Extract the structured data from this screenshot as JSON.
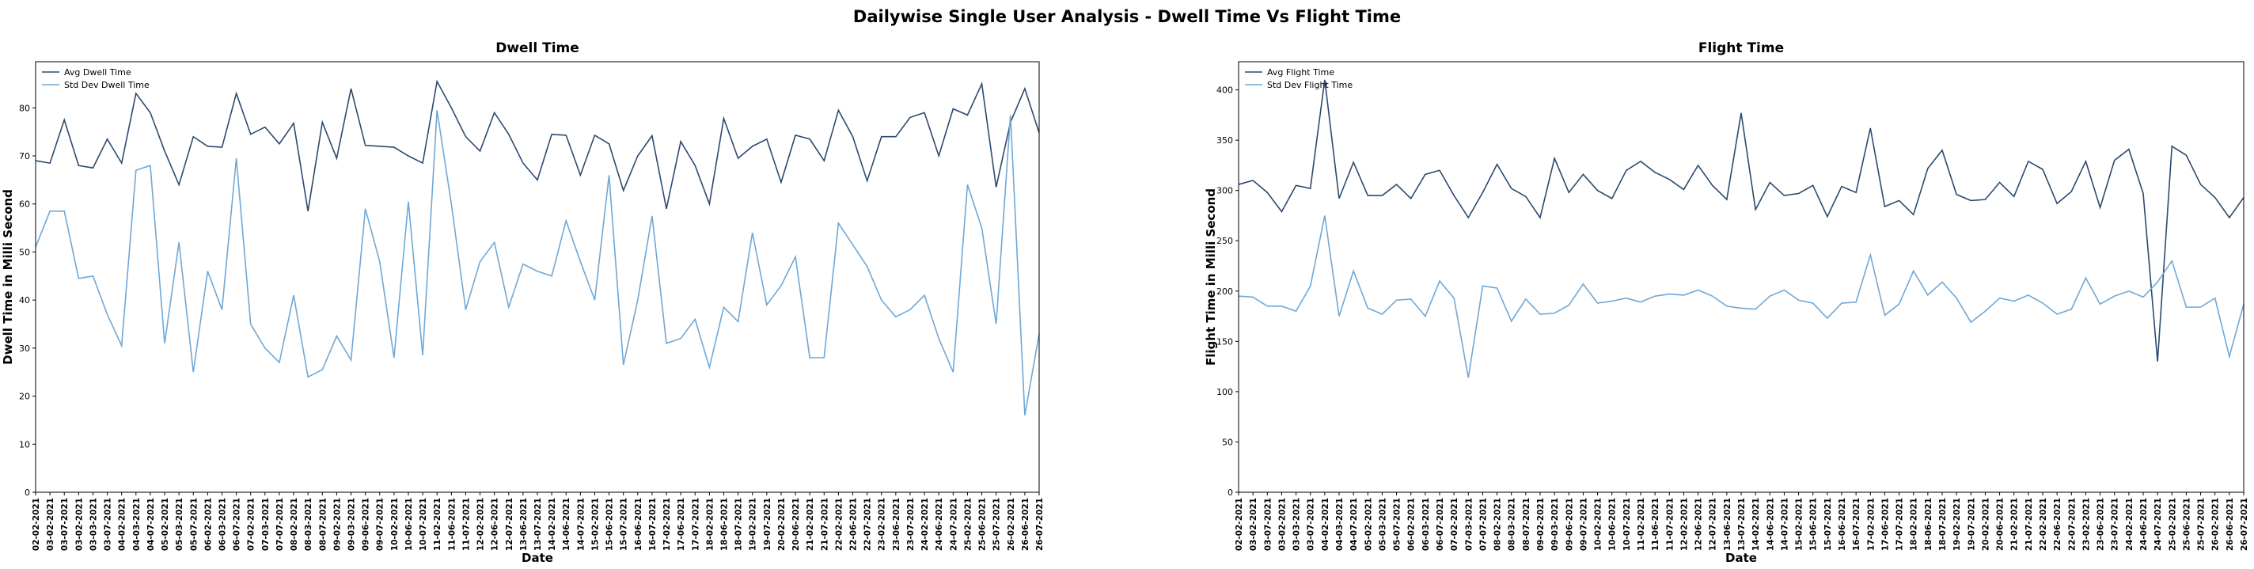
{
  "title": "Dailywise Single User Analysis - Dwell Time Vs Flight Time",
  "chart_data": [
    {
      "type": "line",
      "title": "Dwell Time",
      "xlabel": "Date",
      "ylabel": "Dwell Time in Milli Second",
      "categories": [
        "02-02-2021",
        "03-02-2021",
        "03-07-2021",
        "03-02-2021",
        "03-03-2021",
        "03-07-2021",
        "04-02-2021",
        "04-03-2021",
        "04-07-2021",
        "05-02-2021",
        "05-03-2021",
        "05-07-2021",
        "06-02-2021",
        "06-03-2021",
        "06-07-2021",
        "07-02-2021",
        "07-03-2021",
        "07-07-2021",
        "08-02-2021",
        "08-03-2021",
        "08-07-2021",
        "09-02-2021",
        "09-03-2021",
        "09-06-2021",
        "09-07-2021",
        "10-02-2021",
        "10-06-2021",
        "10-07-2021",
        "11-02-2021",
        "11-06-2021",
        "11-07-2021",
        "12-02-2021",
        "12-06-2021",
        "12-07-2021",
        "13-06-2021",
        "13-07-2021",
        "14-02-2021",
        "14-06-2021",
        "14-07-2021",
        "15-02-2021",
        "15-06-2021",
        "15-07-2021",
        "16-06-2021",
        "16-07-2021",
        "17-02-2021",
        "17-06-2021",
        "17-07-2021",
        "18-02-2021",
        "18-06-2021",
        "18-07-2021",
        "19-02-2021",
        "19-07-2021",
        "20-02-2021",
        "20-06-2021",
        "21-02-2021",
        "21-07-2021",
        "22-02-2021",
        "22-06-2021",
        "22-07-2021",
        "23-02-2021",
        "23-06-2021",
        "23-07-2021",
        "24-02-2021",
        "24-06-2021",
        "24-07-2021",
        "25-02-2021",
        "25-06-2021",
        "25-07-2021",
        "26-02-2021",
        "26-06-2021",
        "26-07-2021"
      ],
      "series": [
        {
          "name": "Avg Dwell Time",
          "color": "#2b4a6f",
          "values": [
            69,
            68.5,
            77.5,
            68,
            67.5,
            73.5,
            68.5,
            83,
            79,
            71,
            64,
            74,
            72,
            71.8,
            83,
            74.5,
            76,
            72.5,
            76.8,
            58.5,
            77,
            69.5,
            84,
            72.2,
            72,
            71.8,
            70,
            68.5,
            85.5,
            80,
            74,
            71,
            79,
            74.5,
            68.5,
            65,
            74.5,
            74.3,
            66,
            74.3,
            72.5,
            62.8,
            70,
            74.2,
            59,
            73,
            68,
            60,
            77.8,
            69.5,
            72,
            73.5,
            64.5,
            74.3,
            73.5,
            69,
            79.5,
            74,
            64.8,
            74,
            74,
            78,
            79,
            70,
            79.8,
            78.5,
            85,
            63.5,
            77,
            84,
            74.8
          ]
        },
        {
          "name": "Std Dev Dwell Time",
          "color": "#6fa8d6",
          "values": [
            51,
            58.5,
            58.5,
            44.5,
            45,
            37,
            30.5,
            67,
            68,
            31,
            52,
            25,
            46,
            38,
            69.5,
            35,
            30,
            27,
            41,
            24,
            25.5,
            32.5,
            27.5,
            59,
            48,
            28,
            60.5,
            28.5,
            79.5,
            60,
            38,
            48,
            52,
            38.5,
            47.5,
            46,
            45,
            56.5,
            48,
            40,
            66,
            26.5,
            40,
            57.5,
            31,
            32,
            36,
            26,
            38.5,
            35.5,
            54,
            39,
            43,
            49,
            28,
            28,
            56,
            51.5,
            47,
            40,
            36.5,
            38,
            41,
            32,
            25,
            64,
            55,
            35,
            78.5,
            16,
            33
          ]
        }
      ],
      "ylim": [
        0,
        89.6
      ],
      "yticks": [
        0,
        10,
        20,
        30,
        40,
        50,
        60,
        70,
        80
      ],
      "legend": "upper left"
    },
    {
      "type": "line",
      "title": "Flight Time",
      "xlabel": "Date",
      "ylabel": "Flight Time in Milli Second",
      "categories": [
        "02-02-2021",
        "03-02-2021",
        "03-07-2021",
        "03-02-2021",
        "03-03-2021",
        "03-07-2021",
        "04-02-2021",
        "04-03-2021",
        "04-07-2021",
        "05-02-2021",
        "05-03-2021",
        "05-07-2021",
        "06-02-2021",
        "06-03-2021",
        "06-07-2021",
        "07-02-2021",
        "07-03-2021",
        "07-07-2021",
        "08-02-2021",
        "08-03-2021",
        "08-07-2021",
        "09-02-2021",
        "09-03-2021",
        "09-06-2021",
        "09-07-2021",
        "10-02-2021",
        "10-06-2021",
        "10-07-2021",
        "11-02-2021",
        "11-06-2021",
        "11-07-2021",
        "12-02-2021",
        "12-06-2021",
        "12-07-2021",
        "13-06-2021",
        "13-07-2021",
        "14-02-2021",
        "14-06-2021",
        "14-07-2021",
        "15-02-2021",
        "15-06-2021",
        "15-07-2021",
        "16-06-2021",
        "16-07-2021",
        "17-02-2021",
        "17-06-2021",
        "17-07-2021",
        "18-02-2021",
        "18-06-2021",
        "18-07-2021",
        "19-02-2021",
        "19-07-2021",
        "20-02-2021",
        "20-06-2021",
        "21-02-2021",
        "21-07-2021",
        "22-02-2021",
        "22-06-2021",
        "22-07-2021",
        "23-02-2021",
        "23-06-2021",
        "23-07-2021",
        "24-02-2021",
        "24-06-2021",
        "24-07-2021",
        "25-02-2021",
        "25-06-2021",
        "25-07-2021",
        "26-02-2021",
        "26-06-2021",
        "26-07-2021"
      ],
      "series": [
        {
          "name": "Avg Flight Time",
          "color": "#2b4a6f",
          "values": [
            306,
            310,
            298,
            279,
            305,
            302,
            410,
            292,
            328,
            295,
            295,
            306,
            292,
            316,
            320,
            295,
            273,
            298,
            326,
            302,
            294,
            273,
            332,
            298,
            316,
            300,
            292,
            320,
            329,
            318,
            311,
            301,
            325,
            305,
            291,
            377,
            281,
            308,
            295,
            297,
            305,
            274,
            304,
            298,
            362,
            284,
            290,
            276,
            322,
            340,
            296,
            290,
            291,
            308,
            294,
            329,
            321,
            287,
            299,
            329,
            283,
            330,
            341,
            297,
            130,
            344,
            335,
            306,
            293,
            273,
            293
          ]
        },
        {
          "name": "Std Dev Flight Time",
          "color": "#6fa8d6",
          "values": [
            195,
            194,
            185,
            185,
            180,
            205,
            275,
            175,
            220,
            183,
            177,
            191,
            192,
            175,
            210,
            193,
            114,
            205,
            203,
            170,
            192,
            177,
            178,
            186,
            207,
            188,
            190,
            193,
            189,
            195,
            197,
            196,
            201,
            195,
            185,
            183,
            182,
            195,
            201,
            191,
            188,
            173,
            188,
            189,
            236,
            176,
            187,
            220,
            196,
            209,
            193,
            169,
            180,
            193,
            190,
            196,
            188,
            177,
            182,
            213,
            187,
            195,
            200,
            194,
            209,
            230,
            184,
            184,
            193,
            135,
            187
          ]
        }
      ],
      "ylim": [
        0,
        428
      ],
      "yticks": [
        0,
        50,
        100,
        150,
        200,
        250,
        300,
        350,
        400
      ],
      "legend": "upper left"
    }
  ]
}
